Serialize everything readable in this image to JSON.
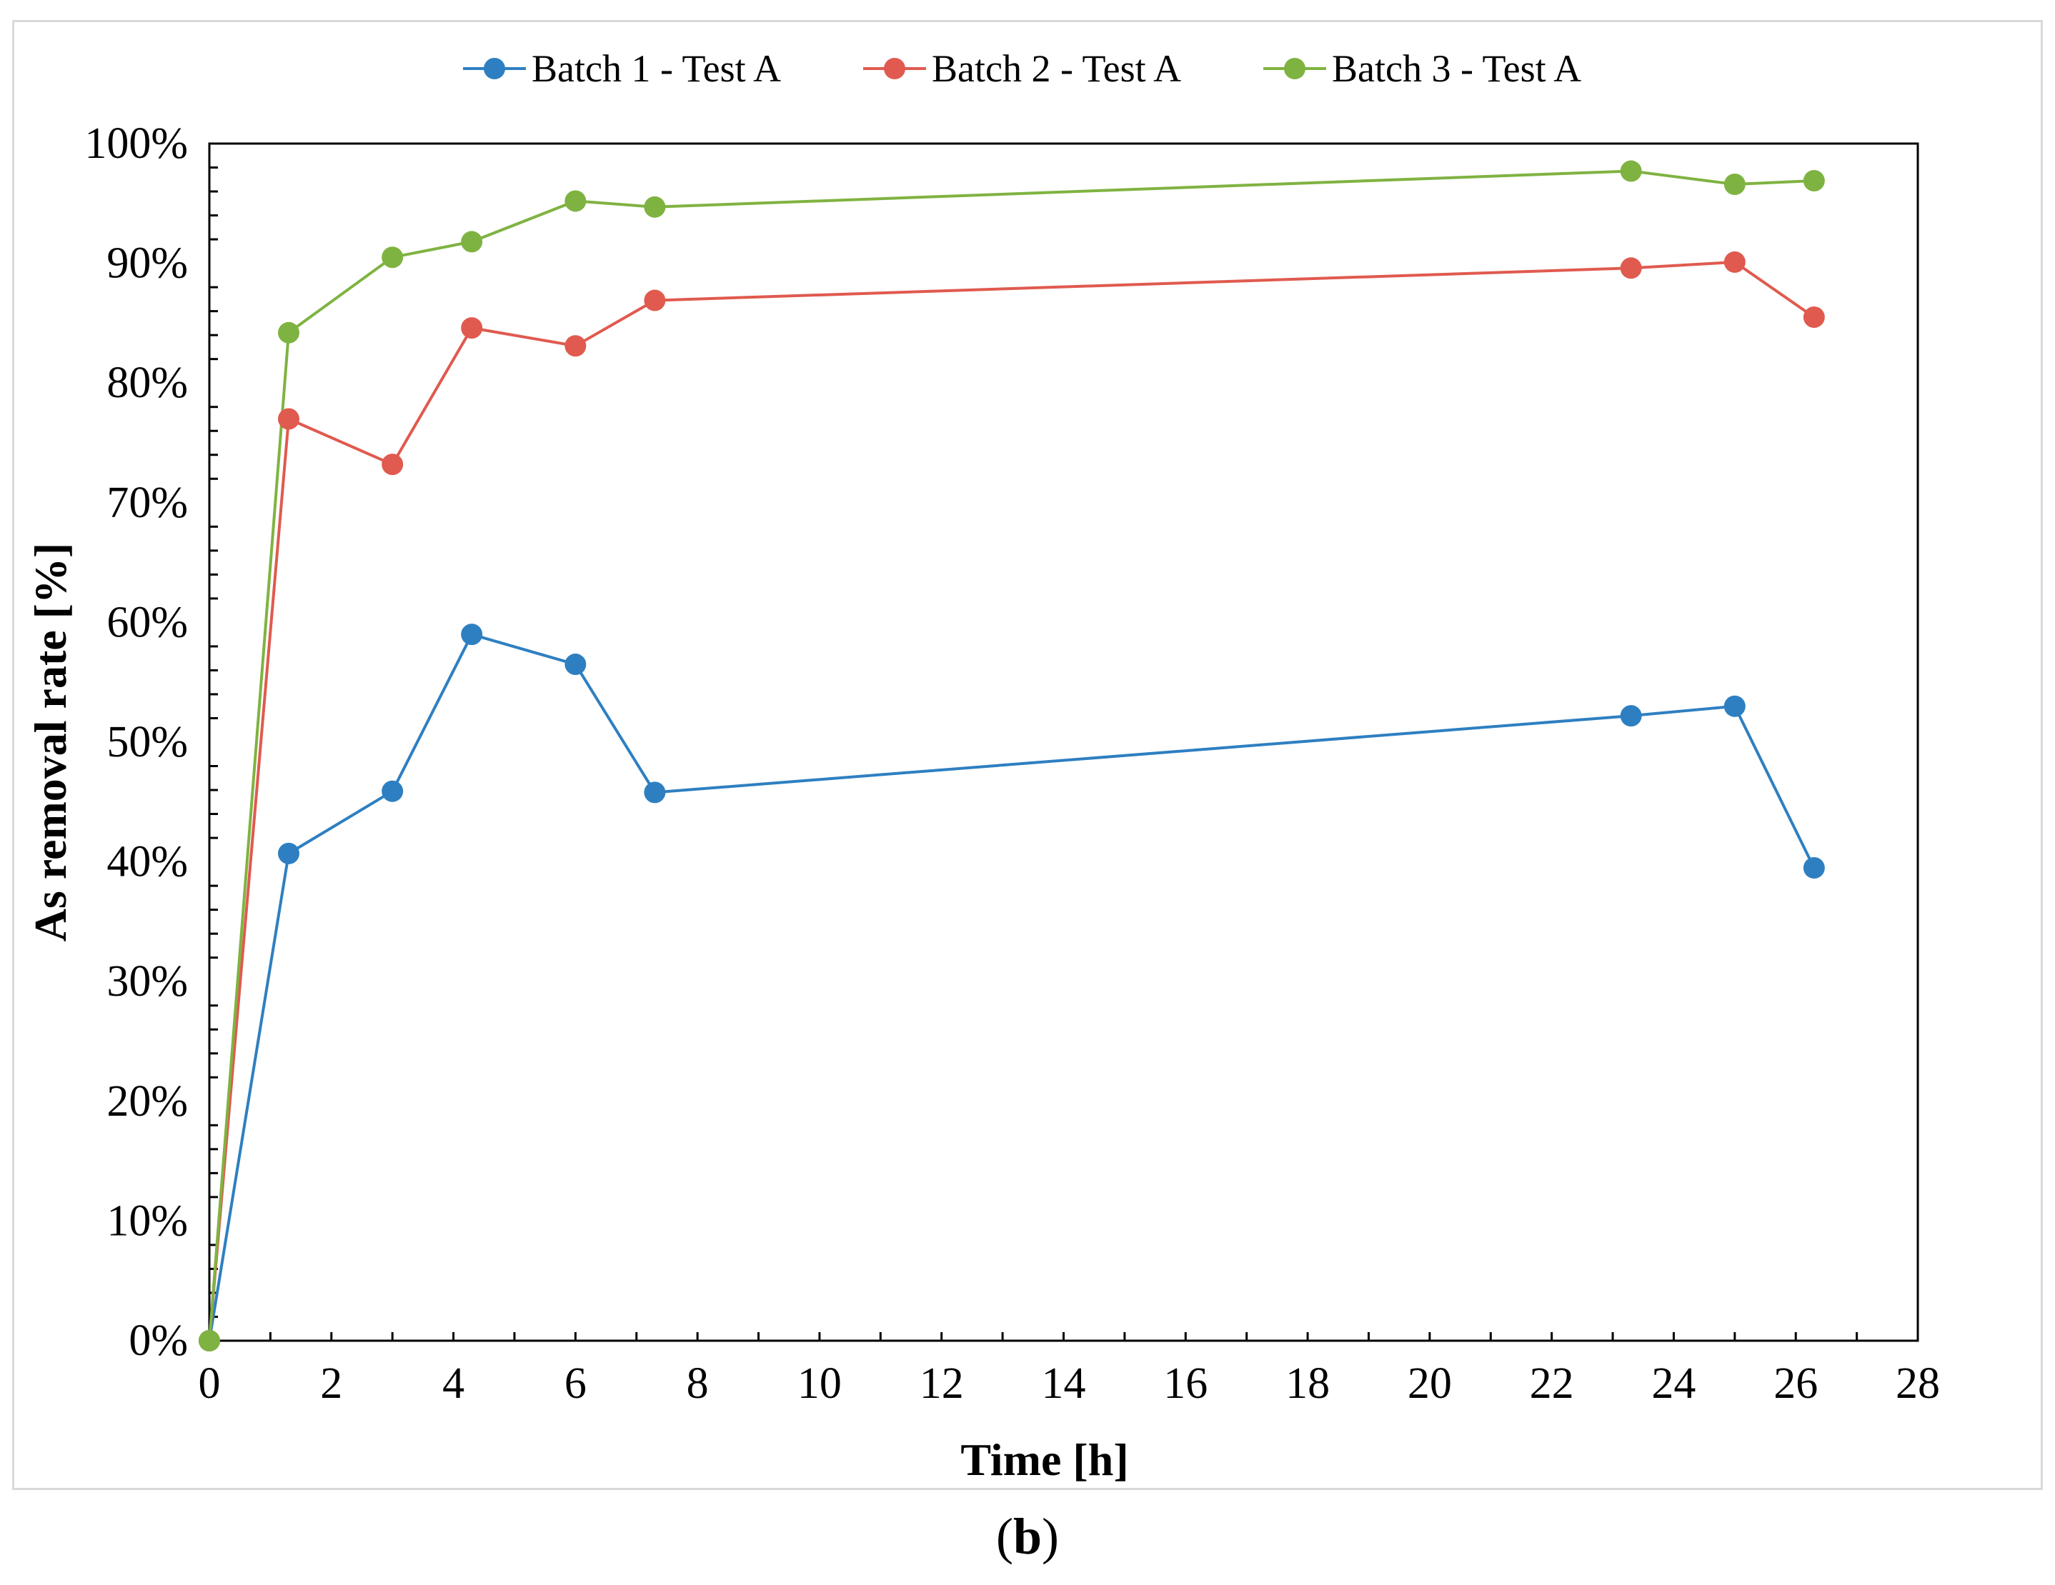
{
  "chart_data": {
    "type": "line",
    "xlabel": "Time [h]",
    "ylabel": "As removal rate [%]",
    "xlim": [
      0,
      28
    ],
    "ylim": [
      0,
      100
    ],
    "x_ticks": [
      "0",
      "2",
      "4",
      "6",
      "8",
      "10",
      "12",
      "14",
      "16",
      "18",
      "20",
      "22",
      "24",
      "26",
      "28"
    ],
    "y_ticks": [
      "0%",
      "10%",
      "20%",
      "30%",
      "40%",
      "50%",
      "60%",
      "70%",
      "80%",
      "90%",
      "100%"
    ],
    "grid": false,
    "legend_position": "top-center",
    "x": [
      0,
      1.3,
      3,
      4.3,
      6,
      7.3,
      23.3,
      25,
      26.3
    ],
    "series": [
      {
        "name": "Batch 1 - Test A",
        "color": "#2e7fc1",
        "values": [
          0,
          40.7,
          45.9,
          59.0,
          56.5,
          45.8,
          52.2,
          53.0,
          39.5
        ]
      },
      {
        "name": "Batch 2 - Test A",
        "color": "#e05a4f",
        "values": [
          0,
          77.0,
          73.2,
          84.6,
          83.1,
          86.9,
          89.6,
          90.1,
          85.5
        ]
      },
      {
        "name": "Batch 3 - Test A",
        "color": "#7fb341",
        "values": [
          0,
          84.2,
          90.5,
          91.8,
          95.2,
          94.7,
          97.7,
          96.6,
          96.9
        ]
      }
    ]
  },
  "caption": {
    "open": "(",
    "letter": "b",
    "close": ")"
  }
}
